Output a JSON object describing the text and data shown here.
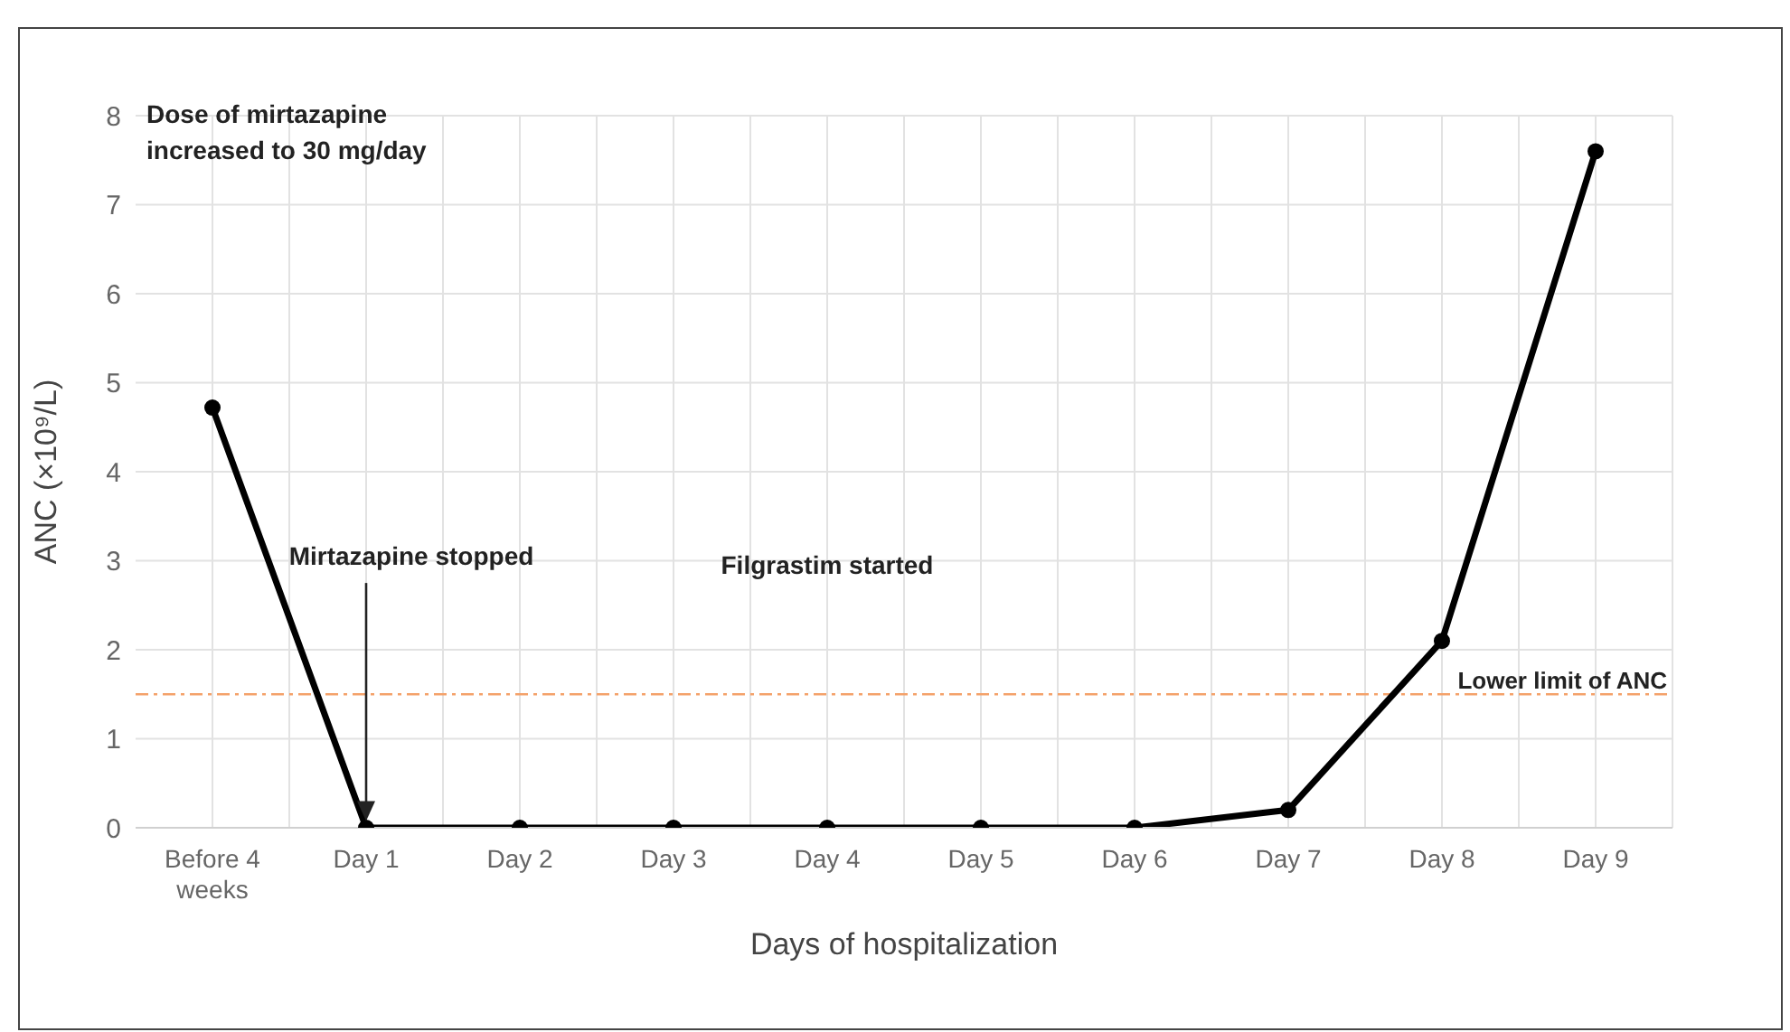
{
  "chart_data": {
    "type": "line",
    "xlabel": "Days of hospitalization",
    "ylabel": "ANC (×10⁹/L)",
    "categories": [
      "Before 4 weeks",
      "Day 1",
      "Day 2",
      "Day 3",
      "Day 4",
      "Day 5",
      "Day 6",
      "Day 7",
      "Day 8",
      "Day 9"
    ],
    "series": [
      {
        "color": "#000000",
        "values": [
          4.72,
          0,
          0,
          0,
          0,
          0,
          0,
          0.2,
          2.1,
          7.6
        ]
      }
    ],
    "ylim": [
      0,
      8
    ],
    "yticks": [
      0,
      1,
      2,
      3,
      4,
      5,
      6,
      7,
      8
    ],
    "grid": true,
    "marker": "circle",
    "line_style": "solid",
    "ref_lines": [
      {
        "axis": "y",
        "value": 1.5,
        "label": "Lower limit of ANC",
        "color": "#f4a26a",
        "line_style": "dashed"
      }
    ],
    "annotations": [
      "Dose of mirtazapine increased to 30 mg/day",
      {
        "text": "Mirtazapine stopped",
        "x": "Day 1",
        "y": 0.3
      },
      "Filgrastim started"
    ]
  }
}
